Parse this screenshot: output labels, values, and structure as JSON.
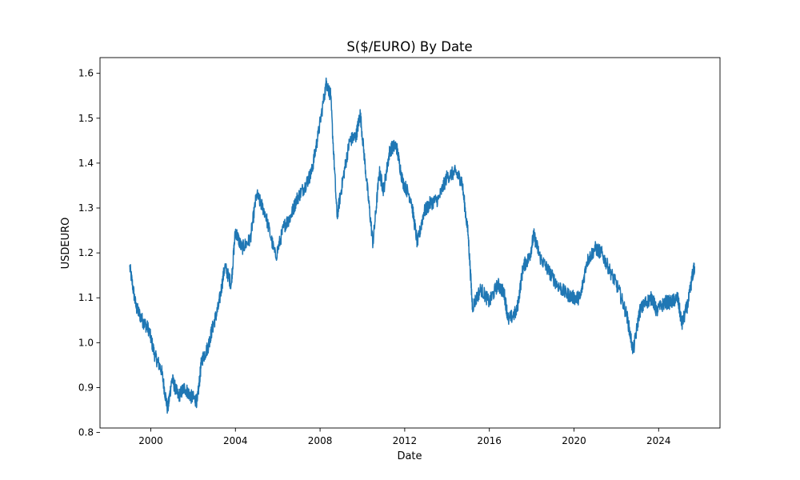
{
  "chart_data": {
    "type": "line",
    "title": "S($/EURO) By Date",
    "xlabel": "Date",
    "ylabel": "USDEURO",
    "xlim": [
      1997.6,
      2026.9
    ],
    "ylim": [
      0.81,
      1.635
    ],
    "x_ticks": [
      "2000",
      "2004",
      "2008",
      "2012",
      "2016",
      "2020",
      "2024"
    ],
    "y_ticks": [
      "0.8",
      "0.9",
      "1.0",
      "1.1",
      "1.2",
      "1.3",
      "1.4",
      "1.5",
      "1.6"
    ],
    "grid": false,
    "legend": "none",
    "series": [
      {
        "color": "#1f77b4",
        "x": [
          1999.0,
          1999.3,
          1999.6,
          1999.9,
          2000.2,
          2000.5,
          2000.8,
          2001.0,
          2001.3,
          2001.6,
          2001.9,
          2002.2,
          2002.4,
          2002.7,
          2002.9,
          2003.2,
          2003.5,
          2003.8,
          2004.0,
          2004.3,
          2004.7,
          2005.0,
          2005.4,
          2005.9,
          2006.3,
          2006.6,
          2006.9,
          2007.3,
          2007.6,
          2007.9,
          2008.3,
          2008.5,
          2008.8,
          2009.1,
          2009.4,
          2009.7,
          2009.9,
          2010.2,
          2010.5,
          2010.8,
          2011.0,
          2011.3,
          2011.6,
          2011.9,
          2012.3,
          2012.6,
          2012.9,
          2013.2,
          2013.6,
          2014.0,
          2014.4,
          2014.7,
          2015.0,
          2015.2,
          2015.6,
          2016.0,
          2016.4,
          2016.7,
          2016.9,
          2017.3,
          2017.6,
          2017.9,
          2018.1,
          2018.4,
          2018.8,
          2019.2,
          2019.6,
          2020.0,
          2020.3,
          2020.6,
          2021.0,
          2021.3,
          2021.7,
          2022.1,
          2022.5,
          2022.8,
          2023.1,
          2023.4,
          2023.7,
          2023.9,
          2024.3,
          2024.6,
          2024.9,
          2025.1,
          2025.4,
          2025.6,
          2025.7
        ],
        "y": [
          1.17,
          1.08,
          1.05,
          1.03,
          0.97,
          0.94,
          0.85,
          0.92,
          0.88,
          0.9,
          0.88,
          0.87,
          0.96,
          0.99,
          1.03,
          1.08,
          1.17,
          1.13,
          1.25,
          1.21,
          1.23,
          1.33,
          1.29,
          1.19,
          1.26,
          1.28,
          1.32,
          1.35,
          1.38,
          1.46,
          1.58,
          1.55,
          1.28,
          1.37,
          1.45,
          1.46,
          1.51,
          1.36,
          1.22,
          1.38,
          1.34,
          1.43,
          1.44,
          1.36,
          1.32,
          1.22,
          1.29,
          1.31,
          1.32,
          1.37,
          1.38,
          1.36,
          1.24,
          1.08,
          1.12,
          1.09,
          1.13,
          1.11,
          1.05,
          1.07,
          1.17,
          1.19,
          1.24,
          1.19,
          1.16,
          1.13,
          1.11,
          1.1,
          1.1,
          1.18,
          1.21,
          1.2,
          1.16,
          1.12,
          1.06,
          0.98,
          1.07,
          1.09,
          1.1,
          1.07,
          1.09,
          1.09,
          1.1,
          1.04,
          1.09,
          1.15,
          1.17
        ]
      }
    ]
  }
}
